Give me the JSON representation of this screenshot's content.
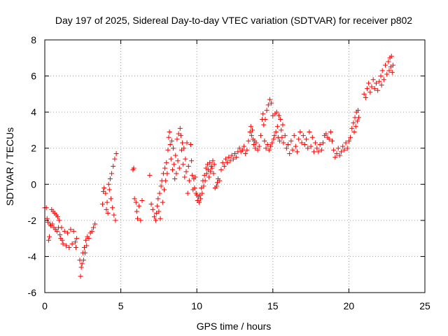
{
  "chart_data": {
    "type": "scatter",
    "title": "Day 197 of 2025, Sidereal Day-to-day VTEC variation (SDTVAR) for receiver p802",
    "xlabel": "GPS time / hours",
    "ylabel": "SDTVAR / TECUs",
    "xlim": [
      0,
      25
    ],
    "ylim": [
      -6,
      8
    ],
    "xticks": [
      0,
      5,
      10,
      15,
      20,
      25
    ],
    "yticks": [
      -6,
      -4,
      -2,
      0,
      2,
      4,
      6,
      8
    ],
    "xtick_labels": [
      "0",
      "5",
      "10",
      "15",
      "20",
      "25"
    ],
    "ytick_labels": [
      "-6",
      "-4",
      "-2",
      "0",
      "2",
      "4",
      "6",
      "8"
    ],
    "grid": true,
    "marker": "plus",
    "color": "#ff0000",
    "series": [
      {
        "name": "SDTVAR",
        "points": [
          [
            0.0,
            -1.3
          ],
          [
            0.1,
            -1.3
          ],
          [
            0.15,
            -1.9
          ],
          [
            0.2,
            -2.1
          ],
          [
            0.25,
            -3.1
          ],
          [
            0.3,
            -2.9
          ],
          [
            0.35,
            -2.2
          ],
          [
            0.4,
            -2.3
          ],
          [
            0.45,
            -1.4
          ],
          [
            0.5,
            -2.2
          ],
          [
            0.55,
            -1.5
          ],
          [
            0.6,
            -2.4
          ],
          [
            0.65,
            -1.6
          ],
          [
            0.7,
            -2.5
          ],
          [
            0.75,
            -1.7
          ],
          [
            0.8,
            -2.6
          ],
          [
            0.85,
            -1.8
          ],
          [
            0.9,
            -2.4
          ],
          [
            0.95,
            -2.0
          ],
          [
            1.0,
            -2.8
          ],
          [
            1.05,
            -3.0
          ],
          [
            1.1,
            -2.4
          ],
          [
            1.15,
            -3.1
          ],
          [
            1.2,
            -3.3
          ],
          [
            1.3,
            -2.6
          ],
          [
            1.4,
            -3.4
          ],
          [
            1.5,
            -2.7
          ],
          [
            1.6,
            -3.5
          ],
          [
            1.7,
            -2.5
          ],
          [
            1.8,
            -3.3
          ],
          [
            1.9,
            -2.6
          ],
          [
            2.0,
            -3.2
          ],
          [
            2.05,
            -3.5
          ],
          [
            2.1,
            -3.0
          ],
          [
            2.3,
            -4.2
          ],
          [
            2.35,
            -5.1
          ],
          [
            2.4,
            -4.6
          ],
          [
            2.45,
            -4.4
          ],
          [
            2.5,
            -3.8
          ],
          [
            2.55,
            -4.2
          ],
          [
            2.6,
            -3.5
          ],
          [
            2.65,
            -3.8
          ],
          [
            2.7,
            -3.1
          ],
          [
            2.75,
            -3.4
          ],
          [
            2.8,
            -2.9
          ],
          [
            2.9,
            -3.0
          ],
          [
            3.0,
            -2.7
          ],
          [
            3.1,
            -2.6
          ],
          [
            3.2,
            -2.4
          ],
          [
            3.3,
            -2.2
          ],
          [
            3.8,
            -1.1
          ],
          [
            3.85,
            -0.4
          ],
          [
            3.9,
            -0.2
          ],
          [
            4.0,
            -0.5
          ],
          [
            4.05,
            -1.4
          ],
          [
            4.1,
            -1.0
          ],
          [
            4.15,
            -1.6
          ],
          [
            4.2,
            0.0
          ],
          [
            4.25,
            -0.3
          ],
          [
            4.3,
            0.3
          ],
          [
            4.35,
            -0.8
          ],
          [
            4.4,
            0.6
          ],
          [
            4.45,
            -1.3
          ],
          [
            4.5,
            1.0
          ],
          [
            4.55,
            -1.7
          ],
          [
            4.6,
            1.4
          ],
          [
            4.65,
            -2.0
          ],
          [
            4.7,
            1.7
          ],
          [
            5.8,
            0.8
          ],
          [
            5.85,
            0.9
          ],
          [
            5.9,
            -0.8
          ],
          [
            6.0,
            -1.0
          ],
          [
            6.05,
            -1.5
          ],
          [
            6.1,
            -1.9
          ],
          [
            6.2,
            -1.2
          ],
          [
            6.3,
            -2.0
          ],
          [
            6.4,
            -0.9
          ],
          [
            6.9,
            0.5
          ],
          [
            7.0,
            -1.1
          ],
          [
            7.1,
            -1.4
          ],
          [
            7.2,
            -1.8
          ],
          [
            7.3,
            -2.0
          ],
          [
            7.35,
            -1.6
          ],
          [
            7.4,
            -1.2
          ],
          [
            7.45,
            -0.8
          ],
          [
            7.5,
            -1.5
          ],
          [
            7.55,
            -0.5
          ],
          [
            7.6,
            -1.9
          ],
          [
            7.65,
            -0.1
          ],
          [
            7.7,
            0.2
          ],
          [
            7.75,
            -1.0
          ],
          [
            7.8,
            0.6
          ],
          [
            7.85,
            -0.3
          ],
          [
            7.9,
            0.9
          ],
          [
            7.95,
            0.2
          ],
          [
            8.0,
            1.2
          ],
          [
            8.05,
            0.6
          ],
          [
            8.1,
            1.9
          ],
          [
            8.15,
            2.6
          ],
          [
            8.2,
            2.9
          ],
          [
            8.25,
            2.2
          ],
          [
            8.3,
            1.4
          ],
          [
            8.35,
            2.4
          ],
          [
            8.4,
            0.8
          ],
          [
            8.45,
            2.0
          ],
          [
            8.5,
            1.1
          ],
          [
            8.55,
            0.3
          ],
          [
            8.6,
            1.6
          ],
          [
            8.65,
            0.6
          ],
          [
            8.7,
            2.5
          ],
          [
            8.75,
            1.3
          ],
          [
            8.8,
            2.8
          ],
          [
            8.85,
            0.9
          ],
          [
            8.9,
            3.1
          ],
          [
            8.95,
            2.7
          ],
          [
            9.0,
            1.9
          ],
          [
            9.05,
            2.3
          ],
          [
            9.1,
            1.1
          ],
          [
            9.15,
            2.0
          ],
          [
            9.2,
            0.4
          ],
          [
            9.25,
            1.4
          ],
          [
            9.3,
            0.7
          ],
          [
            9.35,
            2.3
          ],
          [
            9.4,
            -0.5
          ],
          [
            9.45,
            1.0
          ],
          [
            9.5,
            0.2
          ],
          [
            9.6,
            2.2
          ],
          [
            9.65,
            1.3
          ],
          [
            9.7,
            0.5
          ],
          [
            9.75,
            -0.3
          ],
          [
            9.8,
            0.3
          ],
          [
            9.85,
            -0.2
          ],
          [
            9.9,
            0.4
          ],
          [
            9.95,
            -0.5
          ],
          [
            10.0,
            -0.6
          ],
          [
            10.05,
            -0.9
          ],
          [
            10.1,
            -0.7
          ],
          [
            10.15,
            -1.0
          ],
          [
            10.2,
            -0.6
          ],
          [
            10.25,
            -0.8
          ],
          [
            10.3,
            -0.2
          ],
          [
            10.35,
            -0.5
          ],
          [
            10.4,
            0.2
          ],
          [
            10.45,
            -0.1
          ],
          [
            10.5,
            0.5
          ],
          [
            10.55,
            0.2
          ],
          [
            10.6,
            0.9
          ],
          [
            10.65,
            0.6
          ],
          [
            10.7,
            1.1
          ],
          [
            10.75,
            0.8
          ],
          [
            10.8,
            0.4
          ],
          [
            10.85,
            1.2
          ],
          [
            10.9,
            0.7
          ],
          [
            10.95,
            1.0
          ],
          [
            11.0,
            0.9
          ],
          [
            11.05,
            1.3
          ],
          [
            11.1,
            0.6
          ],
          [
            11.15,
            1.1
          ],
          [
            11.2,
            -0.2
          ],
          [
            11.3,
            -0.1
          ],
          [
            11.35,
            0.1
          ],
          [
            11.4,
            0.3
          ],
          [
            11.5,
            0.2
          ],
          [
            11.6,
            0.8
          ],
          [
            11.7,
            1.2
          ],
          [
            11.8,
            1.0
          ],
          [
            11.9,
            1.4
          ],
          [
            12.0,
            1.2
          ],
          [
            12.1,
            1.5
          ],
          [
            12.2,
            1.3
          ],
          [
            12.3,
            1.6
          ],
          [
            12.4,
            1.4
          ],
          [
            12.5,
            1.7
          ],
          [
            12.6,
            1.5
          ],
          [
            12.7,
            1.8
          ],
          [
            12.8,
            2.0
          ],
          [
            12.9,
            1.8
          ],
          [
            13.0,
            1.9
          ],
          [
            13.1,
            2.1
          ],
          [
            13.2,
            1.7
          ],
          [
            13.3,
            1.9
          ],
          [
            13.4,
            2.4
          ],
          [
            13.5,
            2.9
          ],
          [
            13.55,
            3.2
          ],
          [
            13.6,
            2.7
          ],
          [
            13.65,
            3.0
          ],
          [
            13.7,
            2.5
          ],
          [
            13.75,
            2.2
          ],
          [
            13.8,
            2.4
          ],
          [
            13.85,
            2.0
          ],
          [
            13.9,
            2.3
          ],
          [
            14.0,
            1.9
          ],
          [
            14.1,
            2.1
          ],
          [
            14.2,
            2.7
          ],
          [
            14.3,
            3.6
          ],
          [
            14.35,
            3.9
          ],
          [
            14.4,
            3.3
          ],
          [
            14.45,
            2.4
          ],
          [
            14.5,
            3.6
          ],
          [
            14.55,
            2.0
          ],
          [
            14.6,
            4.1
          ],
          [
            14.65,
            2.2
          ],
          [
            14.7,
            4.4
          ],
          [
            14.75,
            1.9
          ],
          [
            14.8,
            4.7
          ],
          [
            14.85,
            2.1
          ],
          [
            14.9,
            4.5
          ],
          [
            14.95,
            2.3
          ],
          [
            15.0,
            3.8
          ],
          [
            15.05,
            2.5
          ],
          [
            15.1,
            2.7
          ],
          [
            15.15,
            3.9
          ],
          [
            15.2,
            2.9
          ],
          [
            15.25,
            4.0
          ],
          [
            15.3,
            3.2
          ],
          [
            15.35,
            2.6
          ],
          [
            15.4,
            3.8
          ],
          [
            15.45,
            2.4
          ],
          [
            15.5,
            3.6
          ],
          [
            15.55,
            3.0
          ],
          [
            15.6,
            2.6
          ],
          [
            15.65,
            3.3
          ],
          [
            15.7,
            2.3
          ],
          [
            15.8,
            2.7
          ],
          [
            15.9,
            2.0
          ],
          [
            16.0,
            2.2
          ],
          [
            16.1,
            1.7
          ],
          [
            16.2,
            2.4
          ],
          [
            16.3,
            1.9
          ],
          [
            16.4,
            2.7
          ],
          [
            16.5,
            2.1
          ],
          [
            16.6,
            1.8
          ],
          [
            16.7,
            2.5
          ],
          [
            16.8,
            2.9
          ],
          [
            16.9,
            2.3
          ],
          [
            17.0,
            2.7
          ],
          [
            17.1,
            2.2
          ],
          [
            17.2,
            2.5
          ],
          [
            17.3,
            2.0
          ],
          [
            17.4,
            2.9
          ],
          [
            17.5,
            2.1
          ],
          [
            17.6,
            2.6
          ],
          [
            17.7,
            1.8
          ],
          [
            17.8,
            2.3
          ],
          [
            17.9,
            2.0
          ],
          [
            18.0,
            1.8
          ],
          [
            18.1,
            2.2
          ],
          [
            18.2,
            1.9
          ],
          [
            18.3,
            2.3
          ],
          [
            18.4,
            2.7
          ],
          [
            18.5,
            2.8
          ],
          [
            18.6,
            2.6
          ],
          [
            18.7,
            2.5
          ],
          [
            18.8,
            2.9
          ],
          [
            18.9,
            2.4
          ],
          [
            19.0,
            1.9
          ],
          [
            19.1,
            1.5
          ],
          [
            19.2,
            1.7
          ],
          [
            19.3,
            2.0
          ],
          [
            19.4,
            1.6
          ],
          [
            19.5,
            1.8
          ],
          [
            19.6,
            2.1
          ],
          [
            19.7,
            1.9
          ],
          [
            19.8,
            2.3
          ],
          [
            19.9,
            2.0
          ],
          [
            20.0,
            2.4
          ],
          [
            20.1,
            2.6
          ],
          [
            20.2,
            3.1
          ],
          [
            20.3,
            3.4
          ],
          [
            20.35,
            2.9
          ],
          [
            20.4,
            3.7
          ],
          [
            20.45,
            3.2
          ],
          [
            20.5,
            4.0
          ],
          [
            20.55,
            3.5
          ],
          [
            20.6,
            4.1
          ],
          [
            20.65,
            3.7
          ],
          [
            21.0,
            5.0
          ],
          [
            21.1,
            4.8
          ],
          [
            21.2,
            5.3
          ],
          [
            21.3,
            5.6
          ],
          [
            21.4,
            5.1
          ],
          [
            21.5,
            5.4
          ],
          [
            21.6,
            5.8
          ],
          [
            21.7,
            5.3
          ],
          [
            21.8,
            5.6
          ],
          [
            21.9,
            5.2
          ],
          [
            22.0,
            5.7
          ],
          [
            22.1,
            6.0
          ],
          [
            22.15,
            5.5
          ],
          [
            22.2,
            6.3
          ],
          [
            22.3,
            5.8
          ],
          [
            22.4,
            6.6
          ],
          [
            22.5,
            6.1
          ],
          [
            22.6,
            6.8
          ],
          [
            22.65,
            6.3
          ],
          [
            22.7,
            7.0
          ],
          [
            22.75,
            6.5
          ],
          [
            22.8,
            7.1
          ],
          [
            22.85,
            6.2
          ],
          [
            22.9,
            6.6
          ]
        ]
      }
    ]
  }
}
